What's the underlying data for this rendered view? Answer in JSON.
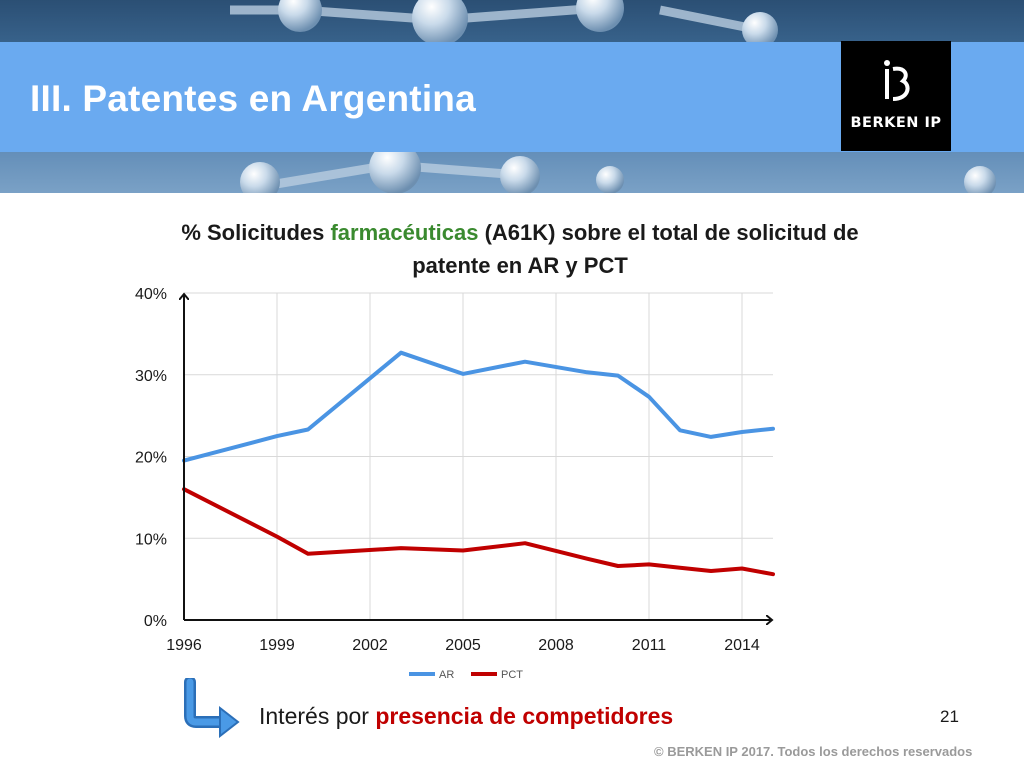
{
  "slide": {
    "title": "III. Patentes en Argentina",
    "logo_text": "BERKEN IP",
    "note_prefix": "Interés por ",
    "note_highlight": "presencia de competidores",
    "page_number": "21",
    "copyright": "© BERKEN IP 2017. Todos los derechos reservados"
  },
  "chart_title": {
    "part1": "% Solicitudes ",
    "highlight": "farmacéuticas",
    "part2": " (A61K) sobre el total de solicitud de patente en AR y PCT"
  },
  "colors": {
    "title_bar": "#6aaaf0",
    "highlight_green": "#3a8a2f",
    "highlight_red": "#c00000",
    "arrow_blue": "#3b8ee0"
  },
  "icons": [
    "bent-arrow-icon"
  ],
  "chart_data": {
    "type": "line",
    "x": [
      1996,
      1999,
      2000,
      2003,
      2005,
      2007,
      2009,
      2010,
      2011,
      2012,
      2013,
      2014,
      2015
    ],
    "series": [
      {
        "name": "AR",
        "color": "#4a94e3",
        "values": [
          19.5,
          22.5,
          23.3,
          32.7,
          30.1,
          31.6,
          30.3,
          29.9,
          27.3,
          23.2,
          22.4,
          23.0,
          23.4
        ]
      },
      {
        "name": "PCT",
        "color": "#c00000",
        "values": [
          16.0,
          10.2,
          8.1,
          8.8,
          8.5,
          9.4,
          7.5,
          6.6,
          6.8,
          6.4,
          6.0,
          6.3,
          5.6
        ]
      }
    ],
    "xticks": [
      "1996",
      "1999",
      "2002",
      "2005",
      "2008",
      "2011",
      "2014"
    ],
    "yticks": [
      "0%",
      "10%",
      "20%",
      "30%",
      "40%"
    ],
    "ylim": [
      0,
      40
    ],
    "xlim": [
      1996,
      2015
    ],
    "grid": true,
    "legend_position": "bottom"
  }
}
